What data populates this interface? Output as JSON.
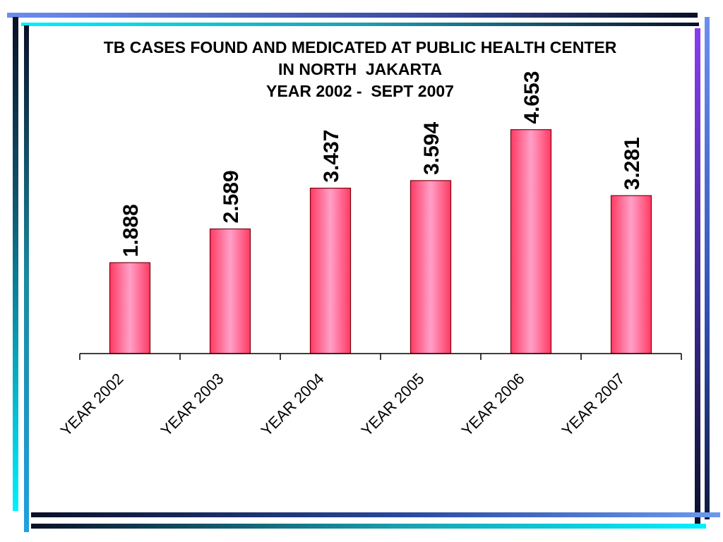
{
  "slide": {
    "frame_colors": {
      "dark": "#0a1028",
      "cyan": "#00e5ff",
      "blue": "#5a8ef0",
      "purple": "#8a3cf0"
    }
  },
  "chart_data": {
    "type": "bar",
    "title_lines": [
      "TB CASES FOUND AND MEDICATED AT PUBLIC HEALTH CENTER",
      "IN NORTH  JAKARTA",
      "YEAR 2002 -  SEPT 2007"
    ],
    "categories": [
      "YEAR 2002",
      "YEAR 2003",
      "YEAR 2004",
      "YEAR 2005",
      "YEAR 2006",
      "YEAR 2007"
    ],
    "values": [
      1888,
      2589,
      3437,
      3594,
      4653,
      3281
    ],
    "data_labels": [
      "1.888",
      "2.589",
      "3.437",
      "3.594",
      "4.653",
      "3.281"
    ],
    "ylim": [
      0,
      5000
    ],
    "bar_color": "#ff3a62",
    "bar_highlight": "#ffa0c8",
    "xlabel": "",
    "ylabel": "",
    "grid": false
  }
}
